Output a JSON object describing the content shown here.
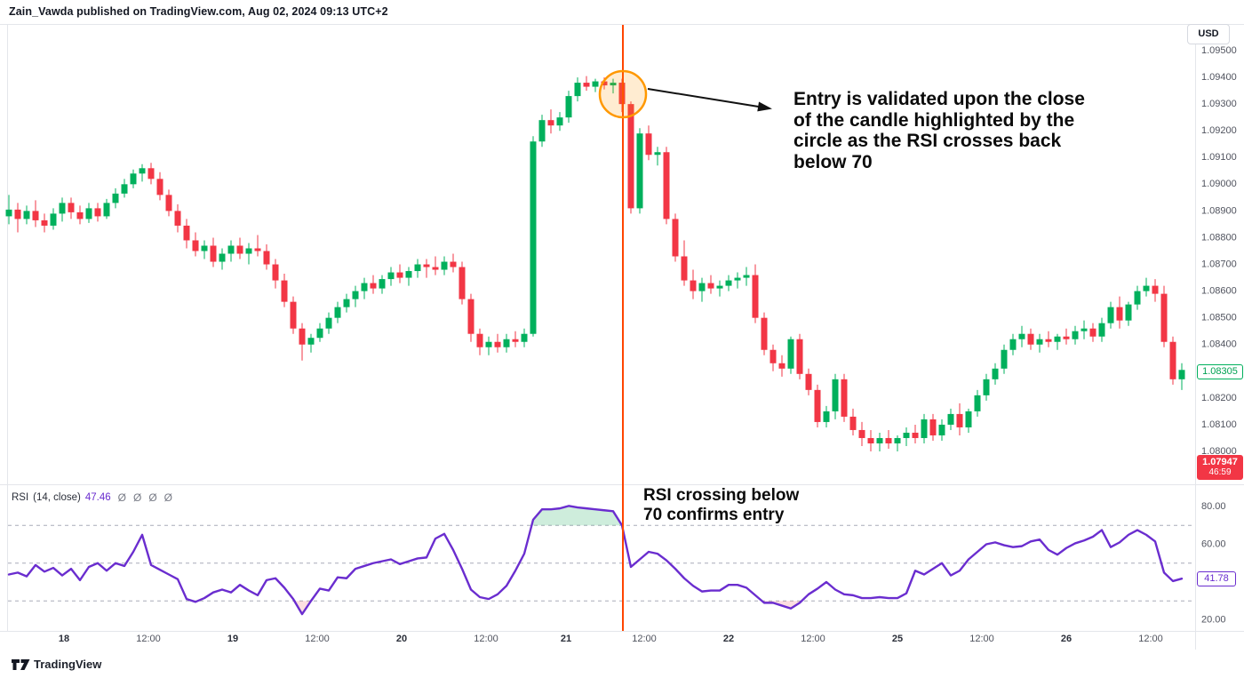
{
  "header": {
    "title": "Zain_Vawda published on TradingView.com, Aug 02, 2024 09:13 UTC+2"
  },
  "currency_button": {
    "label": "USD"
  },
  "annotations": {
    "entry_note_lines": [
      "Entry is validated upon the close",
      "of the candle highlighted by the",
      "circle as the RSI crosses back",
      "below 70"
    ],
    "rsi_note_lines": [
      "RSI crossing below",
      "70 confirms entry"
    ]
  },
  "indicator": {
    "name": "RSI",
    "params": "(14, close)",
    "value": "47.46",
    "icons": [
      "Ø",
      "Ø",
      "Ø",
      "Ø"
    ]
  },
  "price_scale": {
    "labels": [
      "1.09500",
      "1.09400",
      "1.09300",
      "1.09200",
      "1.09100",
      "1.09000",
      "1.08900",
      "1.08800",
      "1.08700",
      "1.08600",
      "1.08500",
      "1.08400",
      "1.08200",
      "1.08100",
      "1.08000"
    ],
    "last_price": "1.08305",
    "countdown_price": "1.07947",
    "countdown_time": "46:59"
  },
  "rsi_scale": {
    "labels": [
      "80.00",
      "60.00",
      "20.00"
    ],
    "badge": "41.78"
  },
  "time_axis": [
    {
      "label": "18",
      "major": true
    },
    {
      "label": "12:00",
      "major": false
    },
    {
      "label": "19",
      "major": true
    },
    {
      "label": "12:00",
      "major": false
    },
    {
      "label": "20",
      "major": true
    },
    {
      "label": "12:00",
      "major": false
    },
    {
      "label": "21",
      "major": true
    },
    {
      "label": "12:00",
      "major": false
    },
    {
      "label": "22",
      "major": true
    },
    {
      "label": "12:00",
      "major": false
    },
    {
      "label": "25",
      "major": true
    },
    {
      "label": "12:00",
      "major": false
    },
    {
      "label": "26",
      "major": true
    },
    {
      "label": "12:00",
      "major": false
    }
  ],
  "footer": {
    "brand": "TradingView"
  },
  "colors": {
    "up": "#00b05c",
    "down": "#f23645",
    "rsi_line": "#6a2dcf",
    "level_dash": "#a8abb8",
    "event_line": "#ff4500",
    "circle_stroke": "#ff9800",
    "circle_fill": "rgba(255,152,0,0.18)",
    "band_above_70": "rgba(34,171,96,0.22)",
    "band_below_30": "rgba(242,54,69,0.16)",
    "axis_text": "#50535e",
    "arrow": "#111111"
  },
  "chart_data": {
    "type": "candlestick",
    "symbol_currency": "USD",
    "price_axis": {
      "min": 1.0795,
      "max": 1.0955,
      "visible_ticks_step": 0.001
    },
    "event": {
      "description": "entry signal vertical line at circled candle",
      "candle_index": 69
    },
    "candles": [
      [
        1.0888,
        1.0896,
        1.0885,
        1.08905
      ],
      [
        1.08905,
        1.0893,
        1.0882,
        1.0887
      ],
      [
        1.0887,
        1.0892,
        1.0885,
        1.089
      ],
      [
        1.089,
        1.0894,
        1.0884,
        1.08865
      ],
      [
        1.08865,
        1.0889,
        1.0882,
        1.08845
      ],
      [
        1.08845,
        1.0891,
        1.0883,
        1.0889
      ],
      [
        1.0889,
        1.0895,
        1.0886,
        1.0893
      ],
      [
        1.0893,
        1.0895,
        1.0887,
        1.08895
      ],
      [
        1.08895,
        1.0892,
        1.0885,
        1.0887
      ],
      [
        1.0887,
        1.0893,
        1.08855,
        1.0891
      ],
      [
        1.0891,
        1.0893,
        1.0886,
        1.0888
      ],
      [
        1.0888,
        1.08945,
        1.0887,
        1.0893
      ],
      [
        1.0893,
        1.08985,
        1.0891,
        1.08965
      ],
      [
        1.08965,
        1.0902,
        1.0895,
        1.09
      ],
      [
        1.09,
        1.09055,
        1.08985,
        1.0904
      ],
      [
        1.0904,
        1.09075,
        1.0901,
        1.0906
      ],
      [
        1.0906,
        1.0908,
        1.09,
        1.0902
      ],
      [
        1.0902,
        1.09045,
        1.0894,
        1.0896
      ],
      [
        1.0896,
        1.0898,
        1.0888,
        1.089
      ],
      [
        1.089,
        1.08925,
        1.0882,
        1.08845
      ],
      [
        1.08845,
        1.0887,
        1.0876,
        1.0879
      ],
      [
        1.0879,
        1.0882,
        1.0873,
        1.0875
      ],
      [
        1.0875,
        1.0879,
        1.0872,
        1.0877
      ],
      [
        1.0877,
        1.088,
        1.0869,
        1.0871
      ],
      [
        1.0871,
        1.0876,
        1.0868,
        1.0874
      ],
      [
        1.0874,
        1.0879,
        1.0871,
        1.0877
      ],
      [
        1.0877,
        1.088,
        1.0872,
        1.0874
      ],
      [
        1.0874,
        1.0878,
        1.087,
        1.0876
      ],
      [
        1.0876,
        1.0881,
        1.0873,
        1.0875
      ],
      [
        1.0875,
        1.08775,
        1.0868,
        1.087
      ],
      [
        1.087,
        1.0872,
        1.0861,
        1.0864
      ],
      [
        1.0864,
        1.08665,
        1.0854,
        1.0856
      ],
      [
        1.0856,
        1.0858,
        1.0844,
        1.0846
      ],
      [
        1.0846,
        1.0848,
        1.0834,
        1.084
      ],
      [
        1.084,
        1.0844,
        1.0837,
        1.08425
      ],
      [
        1.08425,
        1.0848,
        1.0841,
        1.0846
      ],
      [
        1.0846,
        1.0852,
        1.0844,
        1.085
      ],
      [
        1.085,
        1.0856,
        1.0848,
        1.0854
      ],
      [
        1.0854,
        1.0859,
        1.0852,
        1.0857
      ],
      [
        1.0857,
        1.0862,
        1.0854,
        1.086
      ],
      [
        1.086,
        1.0865,
        1.0857,
        1.0863
      ],
      [
        1.0863,
        1.0866,
        1.0859,
        1.0861
      ],
      [
        1.0861,
        1.0866,
        1.0859,
        1.08645
      ],
      [
        1.08645,
        1.0869,
        1.0862,
        1.0867
      ],
      [
        1.0867,
        1.087,
        1.0863,
        1.0865
      ],
      [
        1.0865,
        1.0869,
        1.0862,
        1.08675
      ],
      [
        1.08675,
        1.0872,
        1.0865,
        1.087
      ],
      [
        1.087,
        1.0872,
        1.0865,
        1.0869
      ],
      [
        1.0869,
        1.0873,
        1.0866,
        1.0868
      ],
      [
        1.0868,
        1.0873,
        1.0866,
        1.0871
      ],
      [
        1.0871,
        1.0874,
        1.0867,
        1.0869
      ],
      [
        1.0869,
        1.0871,
        1.0855,
        1.0857
      ],
      [
        1.0857,
        1.0859,
        1.0841,
        1.0844
      ],
      [
        1.0844,
        1.0846,
        1.0836,
        1.0839
      ],
      [
        1.0839,
        1.0843,
        1.0836,
        1.0841
      ],
      [
        1.0841,
        1.0844,
        1.0837,
        1.0839
      ],
      [
        1.0839,
        1.0844,
        1.0837,
        1.0842
      ],
      [
        1.0842,
        1.0845,
        1.0839,
        1.0841
      ],
      [
        1.0841,
        1.0846,
        1.0839,
        1.0844
      ],
      [
        1.0844,
        1.0918,
        1.0843,
        1.0916
      ],
      [
        1.0916,
        1.0926,
        1.0914,
        1.0924
      ],
      [
        1.0924,
        1.0928,
        1.0919,
        1.0922
      ],
      [
        1.0922,
        1.0927,
        1.092,
        1.0925
      ],
      [
        1.0925,
        1.0935,
        1.0923,
        1.0933
      ],
      [
        1.0933,
        1.094,
        1.0931,
        1.0938
      ],
      [
        1.0938,
        1.09405,
        1.0935,
        1.09365
      ],
      [
        1.09365,
        1.09395,
        1.09345,
        1.09385
      ],
      [
        1.09385,
        1.094,
        1.09355,
        1.0937
      ],
      [
        1.0937,
        1.09395,
        1.0934,
        1.0938
      ],
      [
        1.0938,
        1.09395,
        1.0927,
        1.093
      ],
      [
        1.093,
        1.0931,
        1.0889,
        1.0891
      ],
      [
        1.0891,
        1.0921,
        1.0889,
        1.0919
      ],
      [
        1.0919,
        1.0922,
        1.0909,
        1.0911
      ],
      [
        1.0911,
        1.0914,
        1.0907,
        1.0912
      ],
      [
        1.0912,
        1.0914,
        1.0885,
        1.0887
      ],
      [
        1.0887,
        1.0889,
        1.0871,
        1.0873
      ],
      [
        1.0873,
        1.0879,
        1.0862,
        1.0864
      ],
      [
        1.0864,
        1.0868,
        1.0857,
        1.086
      ],
      [
        1.086,
        1.0865,
        1.0856,
        1.0863
      ],
      [
        1.0863,
        1.0866,
        1.0859,
        1.0861
      ],
      [
        1.0861,
        1.0864,
        1.0858,
        1.0862
      ],
      [
        1.0862,
        1.0866,
        1.086,
        1.0864
      ],
      [
        1.0864,
        1.0867,
        1.0861,
        1.0865
      ],
      [
        1.0865,
        1.0869,
        1.0862,
        1.0866
      ],
      [
        1.0866,
        1.087,
        1.0848,
        1.085
      ],
      [
        1.085,
        1.0852,
        1.0836,
        1.0838
      ],
      [
        1.0838,
        1.084,
        1.083,
        1.0833
      ],
      [
        1.0833,
        1.0836,
        1.0828,
        1.0831
      ],
      [
        1.0831,
        1.0843,
        1.0829,
        1.0842
      ],
      [
        1.0842,
        1.0844,
        1.0827,
        1.0829
      ],
      [
        1.0829,
        1.0831,
        1.0821,
        1.0823
      ],
      [
        1.0823,
        1.0825,
        1.0809,
        1.0811
      ],
      [
        1.0811,
        1.0817,
        1.0809,
        1.0815
      ],
      [
        1.0815,
        1.0829,
        1.0812,
        1.0827
      ],
      [
        1.0827,
        1.0829,
        1.0811,
        1.0813
      ],
      [
        1.0813,
        1.0816,
        1.0806,
        1.0808
      ],
      [
        1.0808,
        1.0811,
        1.0802,
        1.0805
      ],
      [
        1.0805,
        1.0808,
        1.08,
        1.0803
      ],
      [
        1.0803,
        1.0807,
        1.08,
        1.0805
      ],
      [
        1.0805,
        1.0808,
        1.0801,
        1.0803
      ],
      [
        1.0803,
        1.0806,
        1.08,
        1.0805
      ],
      [
        1.0805,
        1.0809,
        1.0802,
        1.0807
      ],
      [
        1.0807,
        1.081,
        1.0803,
        1.0805
      ],
      [
        1.0805,
        1.0814,
        1.0803,
        1.0812
      ],
      [
        1.0812,
        1.0814,
        1.0804,
        1.0806
      ],
      [
        1.0806,
        1.0812,
        1.0804,
        1.081
      ],
      [
        1.081,
        1.0816,
        1.0808,
        1.0814
      ],
      [
        1.0814,
        1.0818,
        1.0806,
        1.0809
      ],
      [
        1.0809,
        1.0816,
        1.0807,
        1.0815
      ],
      [
        1.0815,
        1.0823,
        1.0813,
        1.0821
      ],
      [
        1.0821,
        1.0829,
        1.0819,
        1.0827
      ],
      [
        1.0827,
        1.0833,
        1.0825,
        1.0831
      ],
      [
        1.0831,
        1.084,
        1.0829,
        1.0838
      ],
      [
        1.0838,
        1.0844,
        1.0836,
        1.0842
      ],
      [
        1.0842,
        1.0847,
        1.0839,
        1.0844
      ],
      [
        1.0844,
        1.0846,
        1.0838,
        1.084
      ],
      [
        1.084,
        1.0844,
        1.0837,
        1.0842
      ],
      [
        1.0842,
        1.0845,
        1.0839,
        1.0841
      ],
      [
        1.0841,
        1.0844,
        1.0838,
        1.0843
      ],
      [
        1.0843,
        1.0846,
        1.084,
        1.0842
      ],
      [
        1.0842,
        1.0847,
        1.084,
        1.0845
      ],
      [
        1.0845,
        1.0849,
        1.0842,
        1.0846
      ],
      [
        1.0846,
        1.0848,
        1.0841,
        1.0843
      ],
      [
        1.0843,
        1.085,
        1.0841,
        1.0848
      ],
      [
        1.0848,
        1.0856,
        1.0846,
        1.0854
      ],
      [
        1.0854,
        1.0858,
        1.0846,
        1.0849
      ],
      [
        1.0849,
        1.0856,
        1.0847,
        1.0855
      ],
      [
        1.0855,
        1.0862,
        1.0853,
        1.086
      ],
      [
        1.086,
        1.0865,
        1.0858,
        1.0862
      ],
      [
        1.0862,
        1.08645,
        1.0856,
        1.0859
      ],
      [
        1.0859,
        1.0862,
        1.0839,
        1.0841
      ],
      [
        1.0841,
        1.0843,
        1.0825,
        1.0827
      ],
      [
        1.0827,
        1.0833,
        1.0823,
        1.08305
      ]
    ],
    "rsi": {
      "name": "RSI",
      "length": 14,
      "source": "close",
      "current_value": 47.46,
      "last_plotted_value": 41.78,
      "levels": {
        "overbought": 70,
        "middle": 50,
        "oversold": 30
      },
      "ylim": [
        15,
        85
      ],
      "values": [
        44,
        45,
        43,
        49,
        45.5,
        47.5,
        43.5,
        47,
        41,
        48,
        50,
        46,
        50,
        48.5,
        56,
        65,
        49,
        46.5,
        44,
        41.5,
        31,
        29.5,
        31.5,
        34.5,
        36,
        34.5,
        38.5,
        35.5,
        33,
        41,
        42,
        37,
        31,
        23,
        30,
        36.5,
        35.5,
        42.5,
        42,
        47,
        48.5,
        50,
        51,
        52,
        49.5,
        51,
        52.5,
        53,
        63,
        65.5,
        57,
        47,
        36,
        32,
        31,
        33.5,
        38,
        46,
        55,
        73,
        78.5,
        78.5,
        79,
        80.3,
        79.5,
        79,
        78.5,
        78,
        77.5,
        70,
        48,
        52,
        56,
        55,
        51.5,
        47,
        42,
        38,
        35,
        35.5,
        35.5,
        38.5,
        38.5,
        37,
        33,
        29,
        29,
        27.5,
        26,
        29,
        33.5,
        36.5,
        40,
        36,
        33.5,
        33,
        31.5,
        31.5,
        32,
        31.5,
        31.5,
        34,
        46,
        44,
        47,
        50,
        43.5,
        46,
        52,
        56,
        60,
        61,
        59.5,
        58.5,
        59,
        61.5,
        62.5,
        57,
        54.5,
        58,
        60.5,
        62,
        64,
        67.5,
        58.5,
        61,
        65,
        67.5,
        65,
        61.5,
        45,
        40.5,
        41.78
      ]
    }
  }
}
